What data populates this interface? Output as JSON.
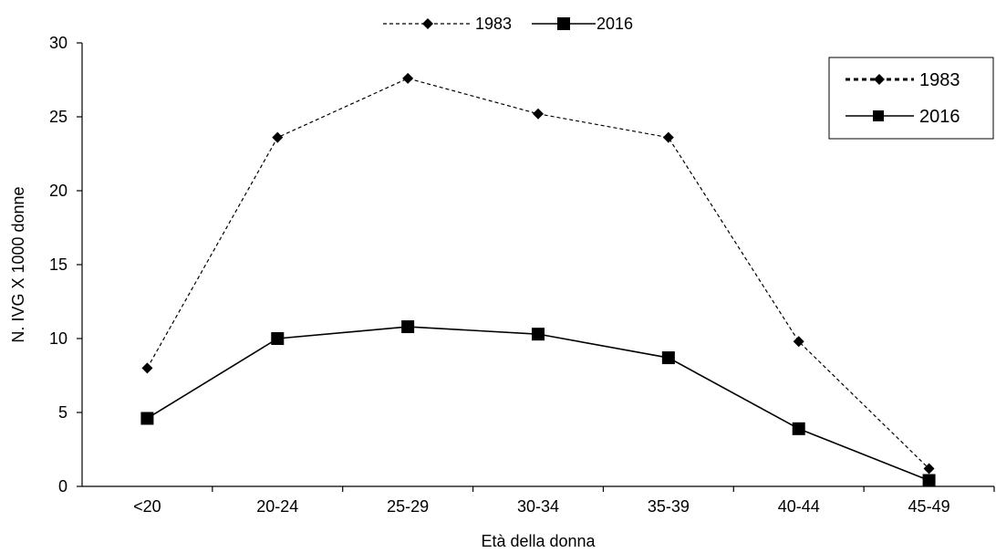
{
  "chart_data": {
    "type": "line",
    "categories": [
      "<20",
      "20-24",
      "25-29",
      "30-34",
      "35-39",
      "40-44",
      "45-49"
    ],
    "series": [
      {
        "name": "1983",
        "values": [
          8.0,
          23.6,
          27.6,
          25.2,
          23.6,
          9.8,
          1.2
        ],
        "style": "dotted",
        "marker": "diamond",
        "color": "#000000"
      },
      {
        "name": "2016",
        "values": [
          4.6,
          10.0,
          10.8,
          10.3,
          8.7,
          3.9,
          0.4
        ],
        "style": "solid",
        "marker": "square",
        "color": "#000000"
      }
    ],
    "xlabel": "Età della donna",
    "ylabel": "N. IVG X 1000 donne",
    "ylim": [
      0,
      30
    ],
    "yticks": [
      "0",
      "5",
      "10",
      "15",
      "20",
      "25",
      "30"
    ],
    "grid": false,
    "legend_positions": [
      "top",
      "top-right"
    ]
  }
}
